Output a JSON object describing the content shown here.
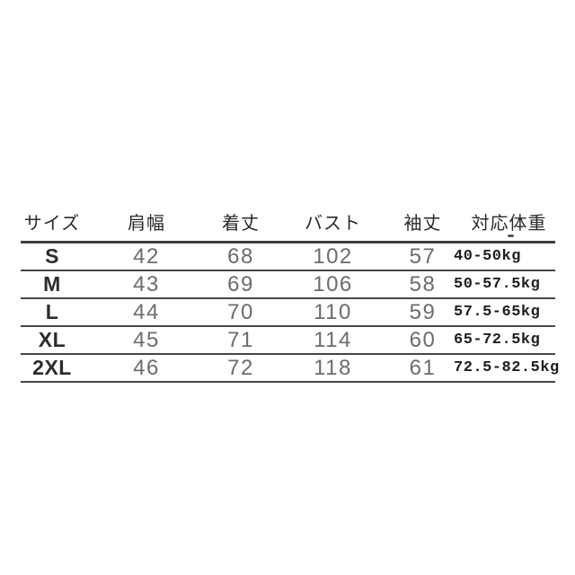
{
  "page": {
    "background_color": "#ffffff",
    "line_color": "#44464a",
    "header_text_color": "#2a2a2c",
    "number_text_color": "#696c71",
    "size_text_color": "#2b2c30",
    "weight_text_color": "#1e1e1e"
  },
  "table": {
    "columns": [
      {
        "key": "size",
        "label": "サイズ"
      },
      {
        "key": "shoulder",
        "label": "肩幅"
      },
      {
        "key": "length",
        "label": "着丈"
      },
      {
        "key": "bust",
        "label": "バスト"
      },
      {
        "key": "sleeve",
        "label": "袖丈"
      },
      {
        "key": "weight",
        "label": "対応体重"
      }
    ],
    "rows": [
      {
        "size": "S",
        "shoulder": "42",
        "length": "68",
        "bust": "102",
        "sleeve": "57",
        "weight": "40-50kg"
      },
      {
        "size": "M",
        "shoulder": "43",
        "length": "69",
        "bust": "106",
        "sleeve": "58",
        "weight": "50-57.5kg"
      },
      {
        "size": "L",
        "shoulder": "44",
        "length": "70",
        "bust": "110",
        "sleeve": "59",
        "weight": "57.5-65kg"
      },
      {
        "size": "XL",
        "shoulder": "45",
        "length": "71",
        "bust": "114",
        "sleeve": "60",
        "weight": "65-72.5kg"
      },
      {
        "size": "2XL",
        "shoulder": "46",
        "length": "72",
        "bust": "118",
        "sleeve": "61",
        "weight": "72.5-82.5kg"
      }
    ]
  }
}
